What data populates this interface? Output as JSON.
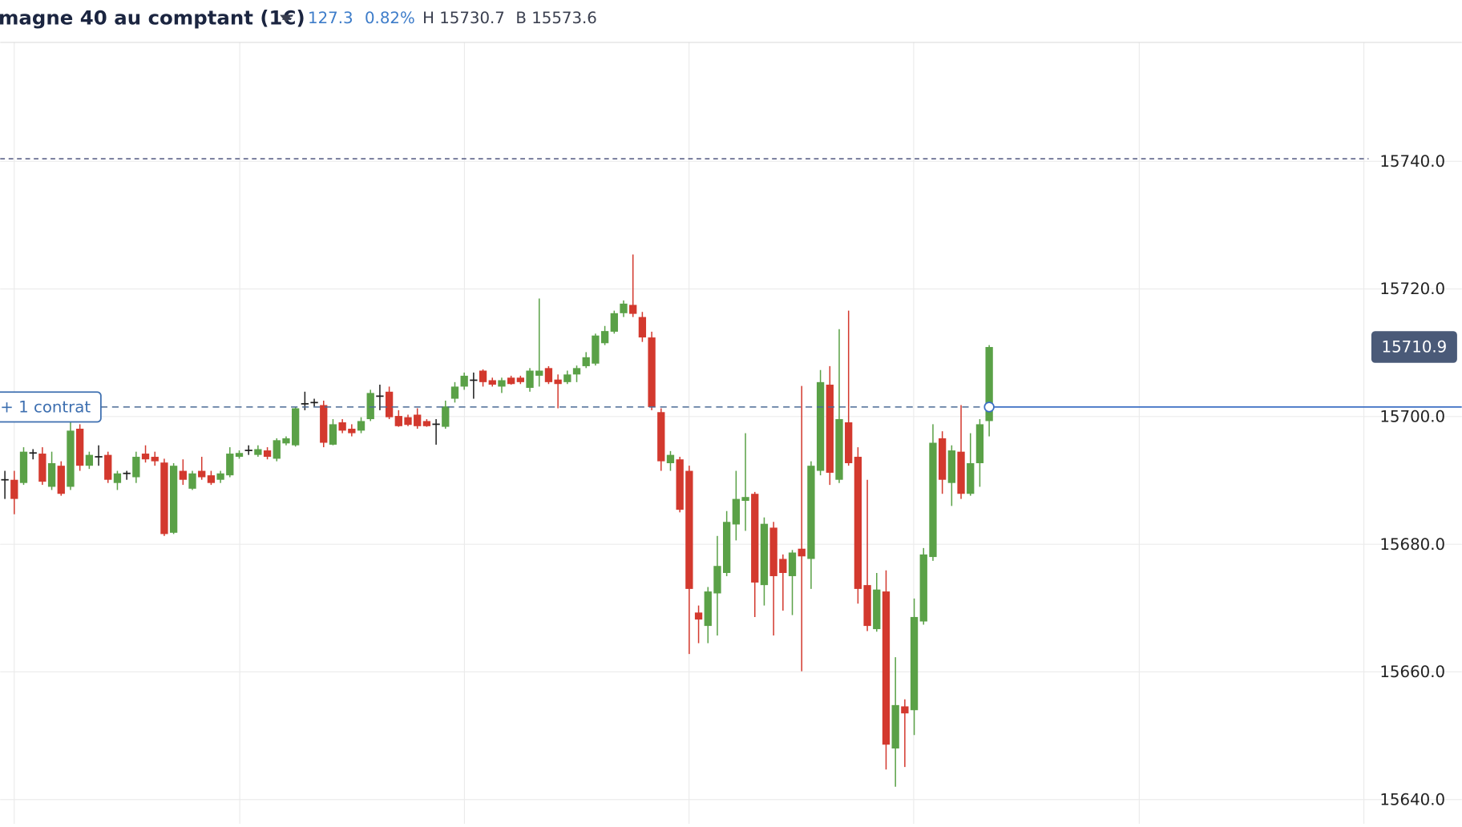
{
  "header": {
    "title": "magne 40 au comptant (1€)",
    "change": "127.3",
    "change_pct": "0.82%",
    "high": "H 15730.7",
    "low": "B 15573.6"
  },
  "chart_data": {
    "type": "candlestick",
    "open": [
      15690.1,
      15690.1,
      15689.6,
      15694.3,
      15694.2,
      15689.0,
      15692.3,
      15689.0,
      15698.1,
      15692.3,
      15693.7,
      15694.0,
      15689.6,
      15691.1,
      15690.5,
      15694.2,
      15693.7,
      15692.8,
      15681.8,
      15691.5,
      15688.7,
      15691.5,
      15690.8,
      15690.1,
      15690.8,
      15693.7,
      15694.7,
      15694.0,
      15694.7,
      15693.4,
      15695.8,
      15695.5,
      15702.0,
      15702.2,
      15701.8,
      15695.6,
      15699.1,
      15698.1,
      15697.8,
      15699.6,
      15703.2,
      15703.9,
      15700.1,
      15699.9,
      15700.3,
      15699.3,
      15698.8,
      15698.4,
      15702.8,
      15704.7,
      15705.7,
      15707.2,
      15705.7,
      15704.7,
      15706.1,
      15706.1,
      15704.5,
      15706.4,
      15707.6,
      15705.8,
      15705.4,
      15706.6,
      15707.9,
      15708.3,
      15711.5,
      15713.3,
      15716.2,
      15717.5,
      15715.6,
      15712.4,
      15700.7,
      15692.7,
      15693.3,
      15691.5,
      15669.3,
      15667.2,
      15672.3,
      15675.5,
      15683.1,
      15686.8,
      15687.9,
      15673.6,
      15682.6,
      15677.7,
      15675.0,
      15679.3,
      15677.7,
      15691.5,
      15705.0,
      15690.1,
      15699.1,
      15693.7,
      15673.6,
      15666.7,
      15672.6,
      15648.0,
      15654.6,
      15654.0,
      15667.9,
      15678.0,
      15696.6,
      15689.6,
      15694.5,
      15687.9,
      15692.7,
      15699.3
    ],
    "high": [
      15691.5,
      15691.5,
      15695.2,
      15694.9,
      15695.2,
      15694.5,
      15693.0,
      15699.6,
      15698.8,
      15694.5,
      15695.5,
      15694.5,
      15691.5,
      15691.5,
      15694.5,
      15695.5,
      15694.5,
      15693.4,
      15692.7,
      15693.3,
      15691.5,
      15693.7,
      15691.5,
      15691.5,
      15695.2,
      15694.7,
      15695.5,
      15695.5,
      15695.2,
      15696.6,
      15696.9,
      15701.5,
      15703.9,
      15702.8,
      15702.5,
      15699.6,
      15699.6,
      15698.8,
      15699.9,
      15704.2,
      15705.0,
      15704.7,
      15701.0,
      15700.3,
      15701.3,
      15699.6,
      15699.6,
      15702.5,
      15705.4,
      15706.9,
      15706.9,
      15707.4,
      15706.1,
      15706.1,
      15706.4,
      15706.4,
      15707.6,
      15718.5,
      15707.9,
      15706.6,
      15707.2,
      15708.0,
      15710.1,
      15713.0,
      15714.2,
      15716.6,
      15718.2,
      15725.4,
      15716.4,
      15713.3,
      15701.3,
      15694.6,
      15693.7,
      15692.3,
      15670.4,
      15673.3,
      15681.3,
      15685.2,
      15691.5,
      15697.4,
      15688.2,
      15684.2,
      15683.5,
      15678.4,
      15679.1,
      15704.8,
      15693.0,
      15707.3,
      15707.9,
      15713.7,
      15716.6,
      15695.2,
      15690.1,
      15675.5,
      15675.9,
      15662.3,
      15655.7,
      15671.5,
      15679.4,
      15698.8,
      15697.7,
      15695.5,
      15701.8,
      15697.4,
      15699.6,
      15711.2
    ],
    "low": [
      15687.1,
      15684.7,
      15689.3,
      15693.3,
      15689.3,
      15688.5,
      15687.6,
      15688.5,
      15691.5,
      15691.8,
      15692.3,
      15689.6,
      15688.5,
      15690.1,
      15689.6,
      15692.8,
      15692.3,
      15681.3,
      15681.6,
      15689.3,
      15688.5,
      15690.1,
      15689.3,
      15689.6,
      15690.5,
      15693.4,
      15694.0,
      15693.7,
      15693.3,
      15693.0,
      15695.5,
      15695.3,
      15701.0,
      15701.6,
      15695.2,
      15695.5,
      15697.4,
      15696.9,
      15697.4,
      15699.3,
      15701.0,
      15699.6,
      15698.4,
      15698.5,
      15698.1,
      15698.4,
      15695.6,
      15698.1,
      15702.2,
      15704.2,
      15702.8,
      15704.7,
      15704.7,
      15703.7,
      15705.0,
      15705.1,
      15703.9,
      15704.7,
      15705.1,
      15701.3,
      15705.1,
      15705.4,
      15707.6,
      15708.0,
      15711.2,
      15713.0,
      15715.6,
      15715.6,
      15711.7,
      15701.0,
      15691.5,
      15691.5,
      15685.0,
      15662.8,
      15664.5,
      15664.5,
      15665.7,
      15675.0,
      15680.6,
      15682.1,
      15668.6,
      15670.4,
      15665.7,
      15669.6,
      15668.9,
      15660.1,
      15673.0,
      15690.8,
      15689.3,
      15689.6,
      15692.3,
      15670.7,
      15666.4,
      15666.3,
      15644.7,
      15642.0,
      15645.1,
      15650.1,
      15667.4,
      15677.4,
      15687.9,
      15686.0,
      15687.1,
      15687.6,
      15689.0,
      15696.9
    ],
    "close": [
      15690.1,
      15687.1,
      15694.5,
      15694.3,
      15689.8,
      15692.7,
      15687.9,
      15697.8,
      15692.3,
      15694.0,
      15693.7,
      15690.1,
      15691.1,
      15691.1,
      15693.7,
      15693.3,
      15693.0,
      15681.6,
      15692.3,
      15690.1,
      15691.1,
      15690.5,
      15689.6,
      15691.1,
      15694.2,
      15694.3,
      15694.7,
      15694.9,
      15693.7,
      15696.3,
      15696.6,
      15701.3,
      15702.0,
      15702.2,
      15695.9,
      15698.8,
      15697.8,
      15697.4,
      15699.3,
      15703.7,
      15703.2,
      15699.9,
      15698.5,
      15698.7,
      15698.5,
      15698.5,
      15698.8,
      15701.6,
      15704.7,
      15706.4,
      15705.7,
      15705.4,
      15705.0,
      15705.7,
      15705.1,
      15705.4,
      15707.2,
      15707.2,
      15705.4,
      15705.1,
      15706.6,
      15707.6,
      15709.3,
      15712.7,
      15713.4,
      15716.2,
      15717.7,
      15716.1,
      15712.4,
      15701.5,
      15693.0,
      15694.0,
      15685.4,
      15673.0,
      15668.2,
      15672.6,
      15676.6,
      15683.5,
      15687.1,
      15687.4,
      15674.0,
      15683.2,
      15675.0,
      15675.5,
      15678.7,
      15678.1,
      15692.3,
      15705.4,
      15691.2,
      15699.6,
      15692.7,
      15673.0,
      15667.2,
      15672.9,
      15648.6,
      15654.8,
      15653.5,
      15668.6,
      15678.4,
      15695.9,
      15690.1,
      15694.7,
      15687.9,
      15692.7,
      15698.8,
      15710.9
    ],
    "up_color": "#5aa147",
    "down_color": "#d3392e",
    "flat_color": "#1e1e1e",
    "ylim": [
      15636.2,
      15758.7
    ],
    "yticks": [
      {
        "value": 15640,
        "label": "15640.0"
      },
      {
        "value": 15660,
        "label": "15660.0"
      },
      {
        "value": 15680,
        "label": "15680.0"
      },
      {
        "value": 15700,
        "label": "15700.0"
      },
      {
        "value": 15720,
        "label": "15720.0"
      },
      {
        "value": 15740,
        "label": "15740.0"
      }
    ],
    "grid": true,
    "last_price": 15710.9,
    "position": {
      "label": "+ 1 contrat",
      "value": 15701.5
    },
    "alert_level": 15740.4
  }
}
